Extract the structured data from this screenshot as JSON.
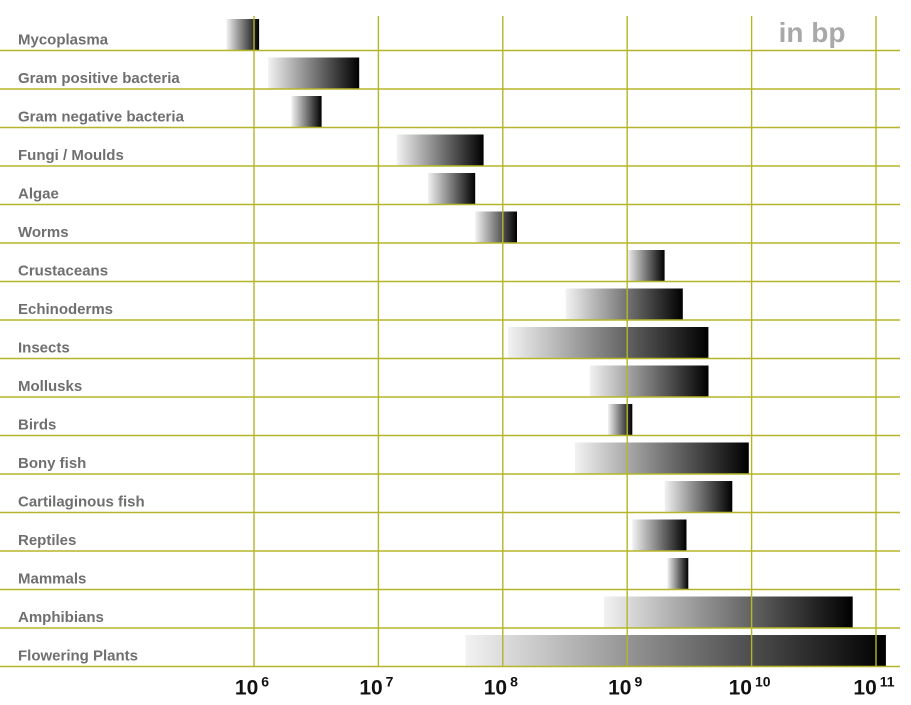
{
  "chart_data": {
    "type": "bar",
    "orientation": "horizontal",
    "subtype": "range",
    "unit_label": "in bp",
    "x_scale": "log10",
    "xlim": [
      100000,
      150000000000
    ],
    "grid": true,
    "grid_color": "#b5b52a",
    "bar_gradient": {
      "light": "#f2f2f2",
      "dark": "#000000"
    },
    "label_color": "#6f6f6f",
    "x_ticks": [
      {
        "base": "10",
        "exp": "6",
        "value": 1000000
      },
      {
        "base": "10",
        "exp": "7",
        "value": 10000000
      },
      {
        "base": "10",
        "exp": "8",
        "value": 100000000
      },
      {
        "base": "10",
        "exp": "9",
        "value": 1000000000
      },
      {
        "base": "10",
        "exp": "10",
        "value": 10000000000
      },
      {
        "base": "10",
        "exp": "11",
        "value": 100000000000
      }
    ],
    "categories": [
      "Mycoplasma",
      "Gram positive bacteria",
      "Gram negative bacteria",
      "Fungi / Moulds",
      "Algae",
      "Worms",
      "Crustaceans",
      "Echinoderms",
      "Insects",
      "Mollusks",
      "Birds",
      "Bony fish",
      "Cartilaginous fish",
      "Reptiles",
      "Mammals",
      "Amphibians",
      "Flowering Plants"
    ],
    "ranges": [
      [
        600000,
        1100000
      ],
      [
        1300000,
        7000000
      ],
      [
        2000000,
        3500000
      ],
      [
        14000000,
        70000000
      ],
      [
        25000000,
        60000000
      ],
      [
        60000000,
        130000000
      ],
      [
        1000000000,
        2000000000
      ],
      [
        320000000,
        2800000000
      ],
      [
        110000000,
        4500000000
      ],
      [
        500000000,
        4500000000
      ],
      [
        700000000,
        1100000000
      ],
      [
        380000000,
        9500000000
      ],
      [
        2000000000,
        7000000000
      ],
      [
        1100000000,
        3000000000
      ],
      [
        2100000000,
        3100000000
      ],
      [
        650000000,
        65000000000
      ],
      [
        50000000,
        120000000000
      ]
    ]
  }
}
